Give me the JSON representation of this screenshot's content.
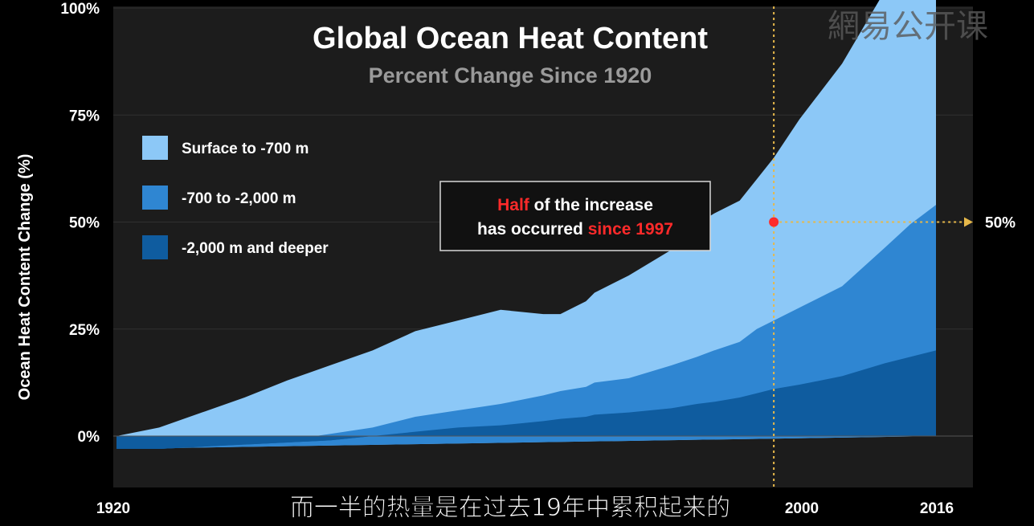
{
  "watermark": "網易公开课",
  "subtitle_caption": "而一半的热量是在过去19年中累积起来的",
  "colors": {
    "background": "#000000",
    "plot_bg": "#1c1c1c",
    "surface": "#8cc8f7",
    "mid": "#2f86d2",
    "deep": "#0f5c9f",
    "highlight": "#ff2a2a",
    "guide": "#e6b84a",
    "subtitle": "#9a9a9a"
  },
  "chart_data": {
    "type": "area",
    "title": "Global Ocean Heat Content",
    "subtitle": "Percent Change Since 1920",
    "ylabel": "Ocean Heat Content Change (%)",
    "xlabel": "",
    "x_ticks": [
      "1920",
      "2000",
      "2016"
    ],
    "y_ticks": [
      "0%",
      "25%",
      "50%",
      "75%",
      "100%"
    ],
    "xlim": [
      1920,
      2024
    ],
    "ylim": [
      -12,
      100
    ],
    "stacked": true,
    "legend": {
      "placement": "top-left",
      "entries": [
        "Surface to -700 m",
        "-700 to -2,000 m",
        "-2,000 m and deeper"
      ]
    },
    "x": [
      1920,
      1925,
      1930,
      1935,
      1940,
      1945,
      1950,
      1955,
      1960,
      1965,
      1970,
      1972,
      1975,
      1976,
      1980,
      1985,
      1988,
      1990,
      1993,
      1995,
      1997,
      2000,
      2005,
      2010,
      2013,
      2016
    ],
    "series": [
      {
        "name": "-2,000 m and deeper",
        "values": [
          -3,
          -3,
          -2.5,
          -2,
          -1.5,
          -1,
          0,
          1,
          2,
          2.5,
          3.5,
          4,
          4.5,
          5,
          5.5,
          6.5,
          7.5,
          8,
          9,
          10,
          11,
          12,
          14,
          17,
          18.5,
          20
        ]
      },
      {
        "name": "-700 to -2,000 m",
        "values": [
          0,
          0,
          0,
          0,
          0.5,
          1.5,
          2,
          3.5,
          4,
          5,
          6,
          6.5,
          7,
          7.5,
          8,
          10,
          11,
          12,
          13,
          15,
          16,
          18,
          21,
          27,
          31,
          34
        ]
      },
      {
        "name": "Surface to -700 m",
        "values": [
          3,
          5,
          8,
          11,
          14,
          16,
          18,
          20,
          21,
          22,
          19,
          18,
          20,
          21,
          24,
          27,
          31,
          32,
          33,
          35,
          38,
          44,
          52,
          60,
          66,
          75
        ]
      }
    ],
    "annotation": {
      "lines": [
        [
          {
            "text": "Half",
            "highlight": true
          },
          {
            "text": " of the increase",
            "highlight": false
          }
        ],
        [
          {
            "text": "has occurred ",
            "highlight": false
          },
          {
            "text": "since 1997",
            "highlight": true
          }
        ]
      ],
      "marker": {
        "x": 1997,
        "y": 50
      },
      "guide_label": "50%"
    }
  }
}
